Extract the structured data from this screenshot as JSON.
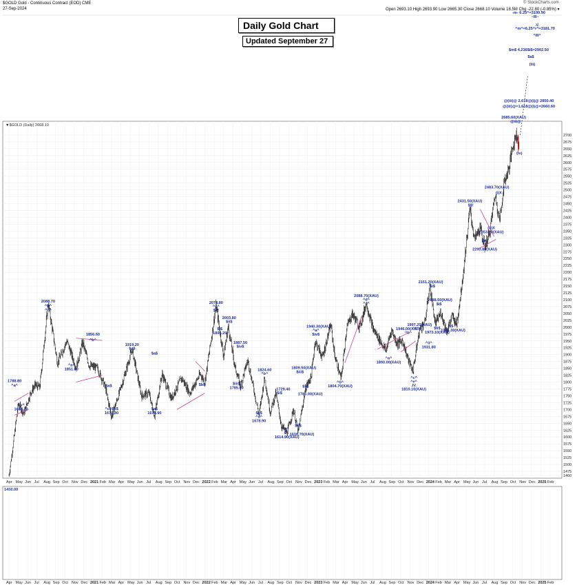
{
  "header": {
    "symbol_line": "$GOLD Gold - Continuous Contract (EOD) CME",
    "date": "27-Sep-2024",
    "ohlc": "Open 2693.10 High 2693.90 Low 2665.30 Close 2668.10 Volume 18.5M Chg -22.80 (-0.85%) ▾",
    "watermark": "© StockCharts.com",
    "legend": "▼$GOLD (Daily) 2668.10"
  },
  "title_box": {
    "title": "Daily Gold Chart",
    "subtitle": "Updated September 27"
  },
  "chart_data": {
    "type": "candlestick",
    "ylim": [
      1450,
      2750
    ],
    "y_ticks": [
      1460,
      1475,
      1500,
      1525,
      1550,
      1575,
      1600,
      1625,
      1650,
      1675,
      1700,
      1725,
      1750,
      1775,
      1800,
      1825,
      1850,
      1875,
      1900,
      1925,
      1950,
      1975,
      2000,
      2025,
      2050,
      2075,
      2100,
      2125,
      2150,
      2175,
      2200,
      2225,
      2250,
      2275,
      2300,
      2325,
      2350,
      2375,
      2400,
      2425,
      2450,
      2475,
      2500,
      2525,
      2550,
      2575,
      2600,
      2625,
      2650,
      2675,
      2700
    ],
    "x_ticks": [
      "Apr",
      "May",
      "Jun",
      "Jul",
      "Aug",
      "Sep",
      "Oct",
      "Nov",
      "Dec",
      "2021",
      "Feb",
      "Mar",
      "Apr",
      "May",
      "Jun",
      "Jul",
      "Aug",
      "Sep",
      "Oct",
      "Nov",
      "Dec",
      "2022",
      "Feb",
      "Mar",
      "Apr",
      "May",
      "Jun",
      "Jul",
      "Aug",
      "Sep",
      "Oct",
      "Nov",
      "Dec",
      "2023",
      "Feb",
      "Mar",
      "Apr",
      "May",
      "Jun",
      "Jul",
      "Aug",
      "Sep",
      "Oct",
      "Nov",
      "Dec",
      "2024",
      "Feb",
      "Mar",
      "Apr",
      "May",
      "Jun",
      "Jul",
      "Aug",
      "Sep",
      "Oct",
      "Nov",
      "Dec",
      "2025",
      "Feb"
    ],
    "last_month_index": 53,
    "pivots": [
      {
        "m": 0.0,
        "v": 1460
      },
      {
        "m": 0.4,
        "v": 1560
      },
      {
        "m": 1.0,
        "v": 1720
      },
      {
        "m": 1.6,
        "v": 1686
      },
      {
        "m": 2.3,
        "v": 1760
      },
      {
        "m": 2.8,
        "v": 1789
      },
      {
        "m": 3.3,
        "v": 1780
      },
      {
        "m": 4.2,
        "v": 2089
      },
      {
        "m": 5.2,
        "v": 1870
      },
      {
        "m": 6.2,
        "v": 1950
      },
      {
        "m": 7.2,
        "v": 1851
      },
      {
        "m": 7.9,
        "v": 1945
      },
      {
        "m": 8.6,
        "v": 1860
      },
      {
        "m": 9.5,
        "v": 1850
      },
      {
        "m": 10.3,
        "v": 1783
      },
      {
        "m": 11.0,
        "v": 1673
      },
      {
        "m": 12.0,
        "v": 1780
      },
      {
        "m": 13.2,
        "v": 1919
      },
      {
        "m": 14.2,
        "v": 1750
      },
      {
        "m": 15.0,
        "v": 1760
      },
      {
        "m": 15.6,
        "v": 1676
      },
      {
        "m": 16.4,
        "v": 1830
      },
      {
        "m": 17.4,
        "v": 1740
      },
      {
        "m": 18.5,
        "v": 1815
      },
      {
        "m": 19.4,
        "v": 1760
      },
      {
        "m": 20.5,
        "v": 1830
      },
      {
        "m": 21.0,
        "v": 1800
      },
      {
        "m": 22.2,
        "v": 2078
      },
      {
        "m": 23.0,
        "v": 1895
      },
      {
        "m": 23.5,
        "v": 2003
      },
      {
        "m": 24.2,
        "v": 1860
      },
      {
        "m": 24.8,
        "v": 1785
      },
      {
        "m": 25.6,
        "v": 1880
      },
      {
        "m": 26.2,
        "v": 1780
      },
      {
        "m": 26.8,
        "v": 1680
      },
      {
        "m": 27.4,
        "v": 1820
      },
      {
        "m": 28.0,
        "v": 1690
      },
      {
        "m": 28.6,
        "v": 1760
      },
      {
        "m": 29.2,
        "v": 1640
      },
      {
        "m": 29.8,
        "v": 1615
      },
      {
        "m": 30.5,
        "v": 1700
      },
      {
        "m": 31.0,
        "v": 1617
      },
      {
        "m": 31.8,
        "v": 1780
      },
      {
        "m": 32.4,
        "v": 1820
      },
      {
        "m": 32.8,
        "v": 1950
      },
      {
        "m": 33.6,
        "v": 1890
      },
      {
        "m": 34.5,
        "v": 2010
      },
      {
        "m": 34.9,
        "v": 1900
      },
      {
        "m": 35.6,
        "v": 1810
      },
      {
        "m": 36.2,
        "v": 2000
      },
      {
        "m": 36.8,
        "v": 2049
      },
      {
        "m": 37.6,
        "v": 2000
      },
      {
        "m": 38.3,
        "v": 2088
      },
      {
        "m": 39.0,
        "v": 1995
      },
      {
        "m": 39.8,
        "v": 1950
      },
      {
        "m": 40.4,
        "v": 1915
      },
      {
        "m": 41.0,
        "v": 1990
      },
      {
        "m": 41.6,
        "v": 1940
      },
      {
        "m": 42.2,
        "v": 1950
      },
      {
        "m": 42.8,
        "v": 1880
      },
      {
        "m": 43.3,
        "v": 1840
      },
      {
        "m": 44.0,
        "v": 1990
      },
      {
        "m": 44.6,
        "v": 2020
      },
      {
        "m": 45.1,
        "v": 2151
      },
      {
        "m": 45.7,
        "v": 2010
      },
      {
        "m": 46.3,
        "v": 2055
      },
      {
        "m": 46.9,
        "v": 1985
      },
      {
        "m": 47.5,
        "v": 2040
      },
      {
        "m": 48.0,
        "v": 2010
      },
      {
        "m": 48.7,
        "v": 2200
      },
      {
        "m": 49.4,
        "v": 2431
      },
      {
        "m": 49.9,
        "v": 2320
      },
      {
        "m": 50.5,
        "v": 2360
      },
      {
        "m": 51.0,
        "v": 2294
      },
      {
        "m": 51.5,
        "v": 2340
      },
      {
        "m": 52.1,
        "v": 2483
      },
      {
        "m": 52.6,
        "v": 2390
      },
      {
        "m": 53.1,
        "v": 2530
      },
      {
        "m": 53.6,
        "v": 2580
      },
      {
        "m": 54.0,
        "v": 2660
      },
      {
        "m": 54.4,
        "v": 2705
      },
      {
        "m": 54.7,
        "v": 2668
      }
    ],
    "annotations": [
      {
        "m": 0.6,
        "v": 1800,
        "text": "1788.80"
      },
      {
        "m": 0.6,
        "v": 1784,
        "text": "^a^"
      },
      {
        "m": 1.3,
        "v": 1712,
        "text": "^b^"
      },
      {
        "m": 1.3,
        "v": 1697,
        "text": "1686.70"
      },
      {
        "m": 4.2,
        "v": 2090,
        "text": "2088.70"
      },
      {
        "m": 4.2,
        "v": 2074,
        "text": "^b^"
      },
      {
        "m": 4.2,
        "v": 2059,
        "text": "^c^"
      },
      {
        "m": 6.7,
        "v": 1858,
        "text": "^a^"
      },
      {
        "m": 6.7,
        "v": 1843,
        "text": "1851.00"
      },
      {
        "m": 9.0,
        "v": 1970,
        "text": "1856.60"
      },
      {
        "m": 9.0,
        "v": 1950,
        "text": "^b^"
      },
      {
        "m": 10.7,
        "v": 1782,
        "text": "$a$"
      },
      {
        "m": 11.0,
        "v": 1698,
        "text": "^c^$b$"
      },
      {
        "m": 11.0,
        "v": 1683,
        "text": "1673.30"
      },
      {
        "m": 13.2,
        "v": 1932,
        "text": "1919.20"
      },
      {
        "m": 13.2,
        "v": 1918,
        "text": "$c$"
      },
      {
        "m": 15.6,
        "v": 1900,
        "text": "$a$"
      },
      {
        "m": 15.6,
        "v": 1698,
        "text": "$a$"
      },
      {
        "m": 15.6,
        "v": 1683,
        "text": "1675.90"
      },
      {
        "m": 22.2,
        "v": 2085,
        "text": "2078.80"
      },
      {
        "m": 22.2,
        "v": 2071,
        "text": "^x^"
      },
      {
        "m": 22.2,
        "v": 2057,
        "text": "$c!"
      },
      {
        "m": 20.7,
        "v": 1786,
        "text": "$b$"
      },
      {
        "m": 22.6,
        "v": 1990,
        "text": "$i$"
      },
      {
        "m": 22.6,
        "v": 1975,
        "text": "1896.20"
      },
      {
        "m": 23.6,
        "v": 2030,
        "text": "2003.80"
      },
      {
        "m": 23.6,
        "v": 2016,
        "text": "$ii$"
      },
      {
        "m": 24.8,
        "v": 1940,
        "text": "1887.50"
      },
      {
        "m": 24.8,
        "v": 1926,
        "text": "$iv$"
      },
      {
        "m": 24.4,
        "v": 1790,
        "text": "$iii$"
      },
      {
        "m": 24.4,
        "v": 1775,
        "text": "1785.00"
      },
      {
        "m": 27.4,
        "v": 1840,
        "text": "1824.60"
      },
      {
        "m": 27.4,
        "v": 1826,
        "text": "^b^"
      },
      {
        "m": 26.8,
        "v": 1683,
        "text": "$v$"
      },
      {
        "m": 26.8,
        "v": 1669,
        "text": "^a^"
      },
      {
        "m": 26.8,
        "v": 1655,
        "text": "1678.90"
      },
      {
        "m": 29.4,
        "v": 1770,
        "text": "1729.40"
      },
      {
        "m": 29.0,
        "v": 1756,
        "text": "$i$"
      },
      {
        "m": 29.6,
        "v": 1625,
        "text": "^c^"
      },
      {
        "m": 29.6,
        "v": 1611,
        "text": "$"
      },
      {
        "m": 29.8,
        "v": 1596,
        "text": "1614.90(XAU)"
      },
      {
        "m": 31.0,
        "v": 1637,
        "text": "$ii$"
      },
      {
        "m": 31.4,
        "v": 1605,
        "text": "1616.70(XAU)"
      },
      {
        "m": 31.6,
        "v": 1848,
        "text": "1809.50(XAU)"
      },
      {
        "m": 31.2,
        "v": 1833,
        "text": "$iii$"
      },
      {
        "m": 31.8,
        "v": 1780,
        "text": "$v$"
      },
      {
        "m": 32.3,
        "v": 1752,
        "text": "1785.00(XAU)"
      },
      {
        "m": 33.2,
        "v": 1998,
        "text": "1940.30(XAU)"
      },
      {
        "m": 32.9,
        "v": 1984,
        "text": "^a^"
      },
      {
        "m": 32.9,
        "v": 1970,
        "text": "$iv$"
      },
      {
        "m": 35.5,
        "v": 1795,
        "text": "^b^"
      },
      {
        "m": 35.5,
        "v": 1781,
        "text": "1804.70(XAU)"
      },
      {
        "m": 38.3,
        "v": 2110,
        "text": "2088.70(XAU)"
      },
      {
        "m": 38.3,
        "v": 2096,
        "text": "^d^"
      },
      {
        "m": 38.3,
        "v": 2082,
        "text": "^c^"
      },
      {
        "m": 40.7,
        "v": 1883,
        "text": "^a^"
      },
      {
        "m": 40.7,
        "v": 1868,
        "text": "1893.00(XAU)"
      },
      {
        "m": 44.0,
        "v": 2005,
        "text": "1997.20(XAU)"
      },
      {
        "m": 43.6,
        "v": 1991,
        "text": "^1^"
      },
      {
        "m": 42.8,
        "v": 1990,
        "text": "1946.00(XAU)"
      },
      {
        "m": 42.8,
        "v": 1976,
        "text": "^b^"
      },
      {
        "m": 43.4,
        "v": 1812,
        "text": "^c^"
      },
      {
        "m": 43.4,
        "v": 1798,
        "text": "^e^"
      },
      {
        "m": 43.4,
        "v": 1784,
        "text": ".IV."
      },
      {
        "m": 43.4,
        "v": 1770,
        "text": "1810.10(XAU)"
      },
      {
        "m": 45.0,
        "v": 1938,
        "text": "^ii^"
      },
      {
        "m": 45.0,
        "v": 1923,
        "text": "1931.80"
      },
      {
        "m": 45.2,
        "v": 2160,
        "text": "2151.20(XAU)"
      },
      {
        "m": 45.4,
        "v": 2145,
        "text": "$i$"
      },
      {
        "m": 46.2,
        "v": 2095,
        "text": "2088.50(XAU)"
      },
      {
        "m": 46.1,
        "v": 2080,
        "text": "$i$"
      },
      {
        "m": 45.9,
        "v": 1992,
        "text": "$ii$"
      },
      {
        "m": 45.9,
        "v": 1977,
        "text": "1973.10(XAU)"
      },
      {
        "m": 47.4,
        "v": 2000,
        "text": "$$"
      },
      {
        "m": 47.6,
        "v": 1985,
        "text": "1984.30(XAU)"
      },
      {
        "m": 49.4,
        "v": 2455,
        "text": "2431.50(XAU)"
      },
      {
        "m": 49.5,
        "v": 2440,
        "text": "$$!"
      },
      {
        "m": 51.0,
        "v": 2310,
        "text": "!M!"
      },
      {
        "m": 51.0,
        "v": 2280,
        "text": "2293.80(XAU)"
      },
      {
        "m": 51.7,
        "v": 2342,
        "text": "2353.20(XAU)"
      },
      {
        "m": 51.7,
        "v": 2357,
        "text": "(ii)X"
      },
      {
        "m": 52.3,
        "v": 2505,
        "text": "2483.70(XAU)"
      },
      {
        "m": 52.5,
        "v": 2485,
        "text": "(i)X"
      },
      {
        "m": 54.1,
        "v": 2760,
        "text": "2685.60(XAU)"
      },
      {
        "m": 54.3,
        "v": 2745,
        "text": "@iii@"
      },
      {
        "m": 54.7,
        "v": 2630,
        "text": "(iv)"
      }
    ],
    "targets": [
      {
        "text": "@(iii)@ 2.618@(i)@ 2850.40"
      },
      {
        "text": "@(iii)@=1.618@(i)@=2660.60"
      },
      {
        "text": "$a$"
      },
      {
        "text": "(iii)"
      },
      {
        "text": "$m$ 4.236$i$=2902.50"
      },
      {
        "text": "-m- 6.25^=3199.90"
      },
      {
        "text": "~III~"
      },
      {
        "text": ".V."
      },
      {
        "text": "^m^=6.25^r^=3181.70"
      },
      {
        "text": "^III^"
      }
    ],
    "lower_panel_label": "1450.00"
  }
}
